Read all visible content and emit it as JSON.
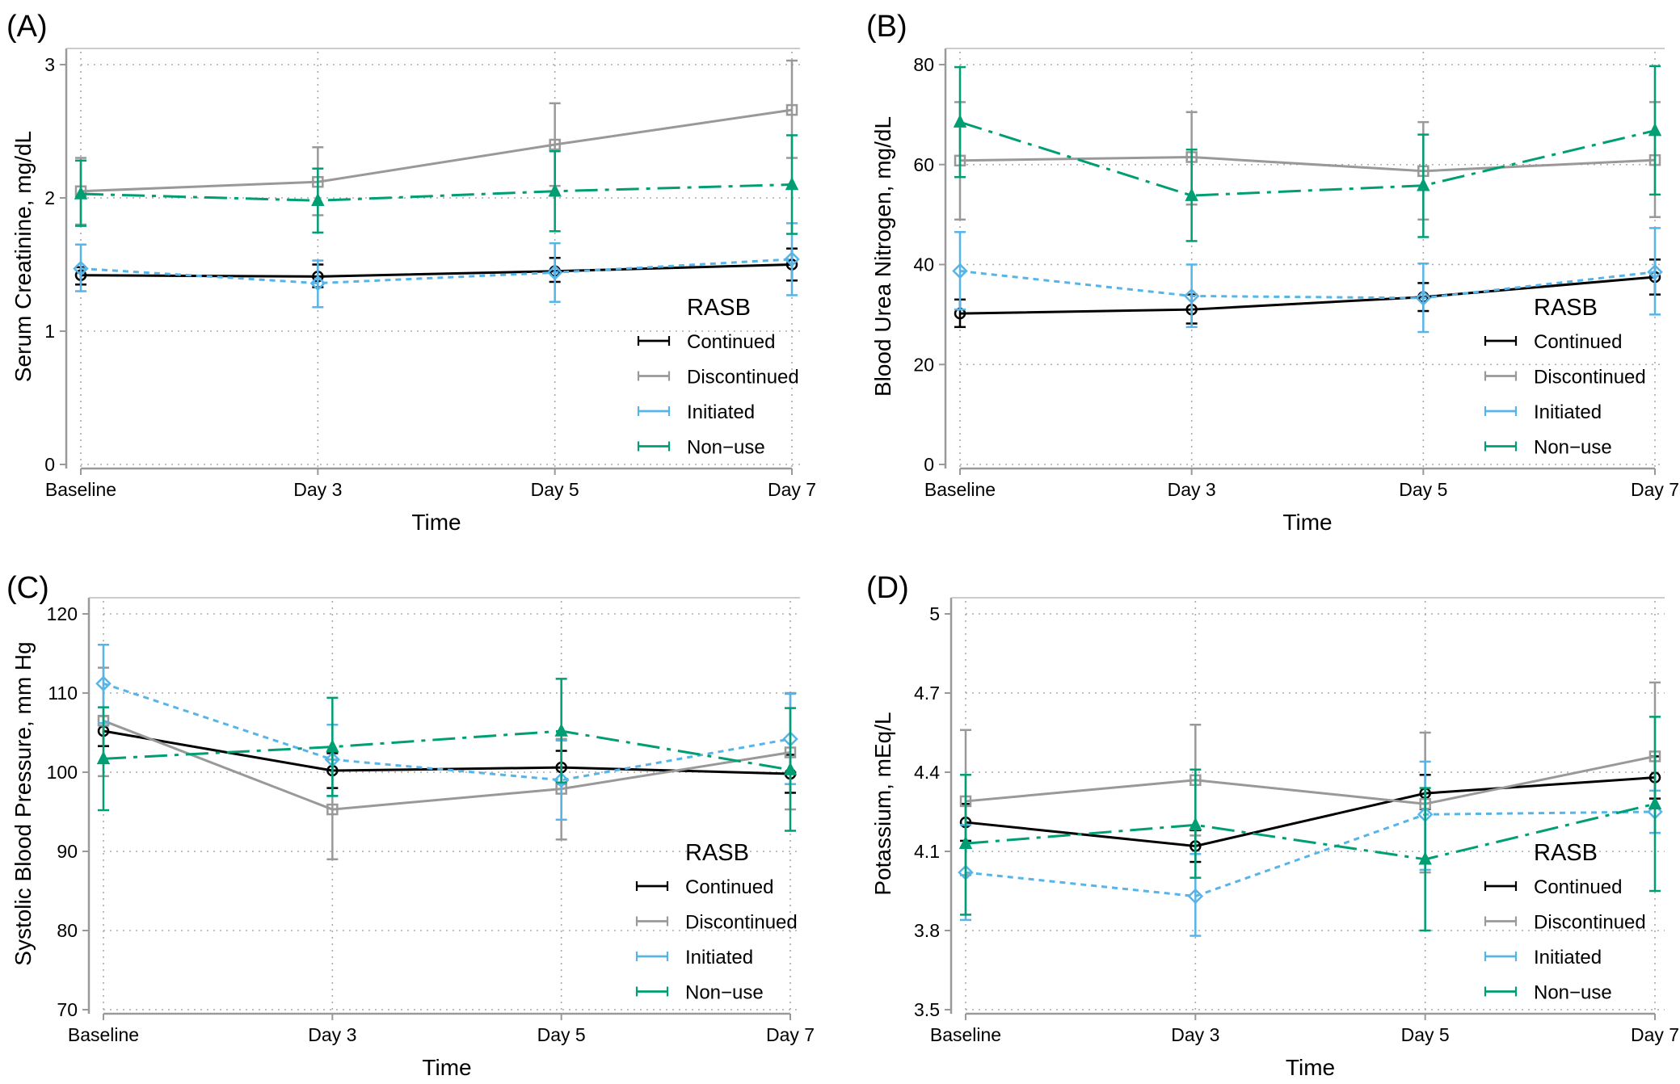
{
  "figure": {
    "legend_title": "RASB",
    "colors": {
      "Continued": "#000000",
      "Discontinued": "#999999",
      "Initiated": "#56B4E9",
      "Non−use": "#009E73"
    }
  },
  "chart_data": [
    {
      "panel": "(A)",
      "type": "line",
      "xlabel": "Time",
      "ylabel": "Serum Creatinine, mg/dL",
      "categories": [
        "Baseline",
        "Day 3",
        "Day 5",
        "Day 7"
      ],
      "ylim": [
        0,
        3
      ],
      "yticks": [
        0,
        1,
        2,
        3
      ],
      "ytick_labels": [
        "0",
        "1",
        "2",
        "3"
      ],
      "grid": true,
      "legend_placement": "lower-right",
      "series": [
        {
          "name": "Continued",
          "values": [
            1.42,
            1.41,
            1.45,
            1.5
          ],
          "lower": [
            1.35,
            1.33,
            1.37,
            1.38
          ],
          "upper": [
            1.48,
            1.5,
            1.55,
            1.62
          ]
        },
        {
          "name": "Discontinued",
          "values": [
            2.05,
            2.12,
            2.4,
            2.66
          ],
          "lower": [
            1.8,
            1.87,
            2.09,
            2.3
          ],
          "upper": [
            2.3,
            2.38,
            2.71,
            3.03
          ]
        },
        {
          "name": "Initiated",
          "values": [
            1.47,
            1.36,
            1.44,
            1.54
          ],
          "lower": [
            1.3,
            1.18,
            1.22,
            1.27
          ],
          "upper": [
            1.65,
            1.53,
            1.66,
            1.81
          ]
        },
        {
          "name": "Non−use",
          "values": [
            2.03,
            1.98,
            2.05,
            2.1
          ],
          "lower": [
            1.79,
            1.74,
            1.75,
            1.73
          ],
          "upper": [
            2.28,
            2.22,
            2.35,
            2.47
          ]
        }
      ]
    },
    {
      "panel": "(B)",
      "type": "line",
      "xlabel": "Time",
      "ylabel": "Blood Urea Nitrogen, mg/dL",
      "categories": [
        "Baseline",
        "Day 3",
        "Day 5",
        "Day 7"
      ],
      "ylim": [
        0,
        80
      ],
      "yticks": [
        0,
        20,
        40,
        60,
        80
      ],
      "ytick_labels": [
        "0",
        "20",
        "40",
        "60",
        "80"
      ],
      "grid": true,
      "legend_placement": "lower-right",
      "series": [
        {
          "name": "Continued",
          "values": [
            30.2,
            31.0,
            33.5,
            37.5
          ],
          "lower": [
            27.5,
            28.2,
            30.7,
            34.0
          ],
          "upper": [
            33.0,
            34.0,
            36.3,
            41.0
          ]
        },
        {
          "name": "Discontinued",
          "values": [
            60.8,
            61.5,
            58.7,
            60.9
          ],
          "lower": [
            49.0,
            52.0,
            49.0,
            49.5
          ],
          "upper": [
            72.5,
            70.5,
            68.5,
            72.5
          ]
        },
        {
          "name": "Initiated",
          "values": [
            38.7,
            33.7,
            33.3,
            38.5
          ],
          "lower": [
            31.0,
            27.5,
            26.5,
            30.0
          ],
          "upper": [
            46.5,
            40.0,
            40.2,
            47.3
          ]
        },
        {
          "name": "Non−use",
          "values": [
            68.5,
            53.8,
            55.8,
            66.8
          ],
          "lower": [
            57.5,
            44.7,
            45.5,
            54.0
          ],
          "upper": [
            79.5,
            63.0,
            66.0,
            79.7
          ]
        }
      ]
    },
    {
      "panel": "(C)",
      "type": "line",
      "xlabel": "Time",
      "ylabel": "Systolic Blood Pressure, mm Hg",
      "categories": [
        "Baseline",
        "Day 3",
        "Day 5",
        "Day 7"
      ],
      "ylim": [
        70,
        120
      ],
      "yticks": [
        70,
        80,
        90,
        100,
        110,
        120
      ],
      "ytick_labels": [
        "70",
        "80",
        "90",
        "100",
        "110",
        "120"
      ],
      "grid": true,
      "legend_placement": "lower-right",
      "series": [
        {
          "name": "Continued",
          "values": [
            105.2,
            100.2,
            100.6,
            99.8
          ],
          "lower": [
            103.3,
            98.0,
            98.5,
            97.4
          ],
          "upper": [
            107.1,
            102.4,
            102.7,
            102.2
          ]
        },
        {
          "name": "Discontinued",
          "values": [
            106.5,
            95.3,
            97.9,
            102.5
          ],
          "lower": [
            99.5,
            89.0,
            91.5,
            95.3
          ],
          "upper": [
            113.2,
            101.6,
            104.2,
            110.0
          ]
        },
        {
          "name": "Initiated",
          "values": [
            111.2,
            101.6,
            99.0,
            104.2
          ],
          "lower": [
            106.2,
            97.0,
            94.0,
            98.5
          ],
          "upper": [
            116.1,
            106.0,
            104.0,
            109.9
          ]
        },
        {
          "name": "Non−use",
          "values": [
            101.7,
            103.2,
            105.2,
            100.3
          ],
          "lower": [
            95.2,
            97.0,
            98.7,
            92.6
          ],
          "upper": [
            108.2,
            109.4,
            111.8,
            108.1
          ]
        }
      ]
    },
    {
      "panel": "(D)",
      "type": "line",
      "xlabel": "Time",
      "ylabel": "Potassium, mEq/L",
      "categories": [
        "Baseline",
        "Day 3",
        "Day 5",
        "Day 7"
      ],
      "ylim": [
        3.5,
        5.0
      ],
      "yticks": [
        3.5,
        3.8,
        4.1,
        4.4,
        4.7,
        5.0
      ],
      "ytick_labels": [
        "3.5",
        "3.8",
        "4.1",
        "4.4",
        "4.7",
        "5"
      ],
      "grid": true,
      "legend_placement": "lower-right",
      "series": [
        {
          "name": "Continued",
          "values": [
            4.21,
            4.12,
            4.32,
            4.38
          ],
          "lower": [
            4.14,
            4.06,
            4.26,
            4.3
          ],
          "upper": [
            4.28,
            4.18,
            4.39,
            4.46
          ]
        },
        {
          "name": "Discontinued",
          "values": [
            4.29,
            4.37,
            4.28,
            4.46
          ],
          "lower": [
            4.01,
            4.16,
            4.02,
            4.17
          ],
          "upper": [
            4.56,
            4.58,
            4.55,
            4.74
          ]
        },
        {
          "name": "Initiated",
          "values": [
            4.02,
            3.93,
            4.24,
            4.25
          ],
          "lower": [
            3.84,
            3.78,
            4.03,
            4.17
          ],
          "upper": [
            4.2,
            4.09,
            4.44,
            4.33
          ]
        },
        {
          "name": "Non−use",
          "values": [
            4.13,
            4.2,
            4.07,
            4.28
          ],
          "lower": [
            3.86,
            4.0,
            3.8,
            3.95
          ],
          "upper": [
            4.39,
            4.41,
            4.34,
            4.61
          ]
        }
      ]
    }
  ]
}
